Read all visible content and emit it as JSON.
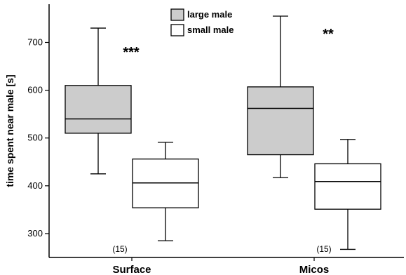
{
  "chart_data": {
    "type": "boxplot",
    "ylabel": "time spent near male [s]",
    "xlabel": "",
    "ylim": [
      250,
      780
    ],
    "yticks": [
      300,
      400,
      500,
      600,
      700
    ],
    "categories": [
      "Surface",
      "Micos"
    ],
    "series": [
      {
        "name": "large male",
        "color": "#cccccc",
        "boxes": [
          {
            "category": "Surface",
            "whisker_low": 425,
            "q1": 510,
            "median": 540,
            "q3": 610,
            "whisker_high": 730
          },
          {
            "category": "Micos",
            "whisker_low": 417,
            "q1": 465,
            "median": 562,
            "q3": 607,
            "whisker_high": 755
          }
        ]
      },
      {
        "name": "small male",
        "color": "#ffffff",
        "boxes": [
          {
            "category": "Surface",
            "whisker_low": 285,
            "q1": 354,
            "median": 406,
            "q3": 456,
            "whisker_high": 491
          },
          {
            "category": "Micos",
            "whisker_low": 267,
            "q1": 351,
            "median": 409,
            "q3": 446,
            "whisker_high": 497
          }
        ]
      }
    ],
    "significance": [
      {
        "category": "Surface",
        "label": "***"
      },
      {
        "category": "Micos",
        "label": "**"
      }
    ],
    "sample_size": [
      {
        "category": "Surface",
        "label": "(15)"
      },
      {
        "category": "Micos",
        "label": "(15)"
      }
    ],
    "legend_position": "top-center",
    "grid": false
  }
}
